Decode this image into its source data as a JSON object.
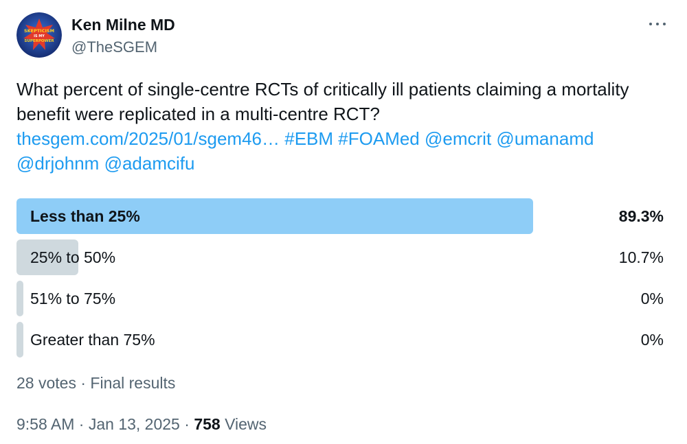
{
  "author": {
    "display_name": "Ken Milne MD",
    "handle": "@TheSGEM",
    "avatar_text": [
      "SKEPTICISM",
      "IS MY",
      "SUPERPOWER"
    ]
  },
  "tweet": {
    "text": "What percent of single-centre RCTs of critically ill patients claiming a mortality benefit were replicated in a multi-centre RCT?",
    "link": "thesgem.com/2025/01/sgem46…",
    "hashtags": [
      "#EBM",
      "#FOAMed"
    ],
    "mentions": [
      "@emcrit",
      "@umanamd",
      "@drjohnm",
      "@adamcifu"
    ]
  },
  "poll": {
    "options": [
      {
        "label": "Less than 25%",
        "percent_text": "89.3%",
        "percent": 89.3,
        "winner": true
      },
      {
        "label": "25% to 50%",
        "percent_text": "10.7%",
        "percent": 10.7,
        "winner": false
      },
      {
        "label": "51% to 75%",
        "percent_text": "0%",
        "percent": 0,
        "winner": false
      },
      {
        "label": "Greater than 75%",
        "percent_text": "0%",
        "percent": 0,
        "winner": false
      }
    ],
    "votes": "28 votes",
    "separator": " · ",
    "status": "Final results"
  },
  "meta": {
    "time": "9:58 AM",
    "date": "Jan 13, 2025",
    "separator": " · ",
    "views_count": "758",
    "views_label": "Views"
  },
  "colors": {
    "link": "#1d9bf0",
    "winner_bar": "#8ecdf7",
    "bar": "#cfd9de",
    "secondary_text": "#536471"
  },
  "icons": {
    "more": "more-dots-icon"
  }
}
